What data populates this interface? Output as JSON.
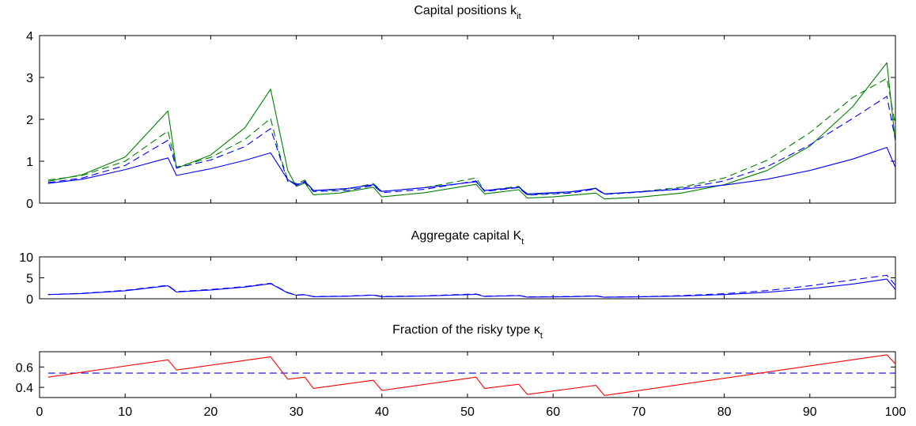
{
  "chart_data": [
    {
      "type": "line",
      "title": "Capital positions k",
      "title_sub": "it",
      "xlim": [
        0,
        100
      ],
      "ylim": [
        0,
        4
      ],
      "yticks": [
        "0",
        "1",
        "2",
        "3",
        "4"
      ],
      "show_xticklabels": false,
      "series": [
        {
          "color": "#008000",
          "style": "solid",
          "points": [
            [
              1,
              0.52
            ],
            [
              5,
              0.68
            ],
            [
              10,
              1.1
            ],
            [
              15,
              2.2
            ],
            [
              16,
              0.83
            ],
            [
              20,
              1.15
            ],
            [
              24,
              1.8
            ],
            [
              27,
              2.72
            ],
            [
              29,
              0.78
            ],
            [
              30,
              0.4
            ],
            [
              31,
              0.48
            ],
            [
              32,
              0.2
            ],
            [
              35,
              0.24
            ],
            [
              39,
              0.38
            ],
            [
              40,
              0.15
            ],
            [
              45,
              0.25
            ],
            [
              51,
              0.45
            ],
            [
              52,
              0.22
            ],
            [
              56,
              0.32
            ],
            [
              57,
              0.12
            ],
            [
              60,
              0.15
            ],
            [
              65,
              0.24
            ],
            [
              66,
              0.1
            ],
            [
              70,
              0.14
            ],
            [
              75,
              0.24
            ],
            [
              80,
              0.44
            ],
            [
              85,
              0.78
            ],
            [
              90,
              1.36
            ],
            [
              95,
              2.3
            ],
            [
              99,
              3.35
            ],
            [
              100,
              1.45
            ]
          ]
        },
        {
          "color": "#008000",
          "style": "dashed",
          "points": [
            [
              1,
              0.55
            ],
            [
              5,
              0.66
            ],
            [
              10,
              1.0
            ],
            [
              15,
              1.72
            ],
            [
              16,
              0.86
            ],
            [
              20,
              1.09
            ],
            [
              24,
              1.52
            ],
            [
              27,
              2.02
            ],
            [
              28,
              1.2
            ],
            [
              29,
              0.55
            ],
            [
              30,
              0.47
            ],
            [
              31,
              0.55
            ],
            [
              32,
              0.3
            ],
            [
              36,
              0.33
            ],
            [
              39,
              0.47
            ],
            [
              40,
              0.28
            ],
            [
              45,
              0.37
            ],
            [
              51,
              0.6
            ],
            [
              52,
              0.3
            ],
            [
              56,
              0.4
            ],
            [
              57,
              0.2
            ],
            [
              62,
              0.26
            ],
            [
              65,
              0.36
            ],
            [
              66,
              0.22
            ],
            [
              70,
              0.27
            ],
            [
              75,
              0.38
            ],
            [
              80,
              0.6
            ],
            [
              85,
              1.02
            ],
            [
              90,
              1.68
            ],
            [
              95,
              2.52
            ],
            [
              99,
              2.98
            ],
            [
              100,
              1.85
            ]
          ]
        },
        {
          "color": "#0000ff",
          "style": "dashed",
          "points": [
            [
              1,
              0.49
            ],
            [
              5,
              0.6
            ],
            [
              10,
              0.9
            ],
            [
              15,
              1.5
            ],
            [
              16,
              0.84
            ],
            [
              20,
              1.03
            ],
            [
              24,
              1.35
            ],
            [
              27,
              1.78
            ],
            [
              29,
              0.52
            ],
            [
              30,
              0.45
            ],
            [
              31,
              0.5
            ],
            [
              32,
              0.28
            ],
            [
              36,
              0.3
            ],
            [
              39,
              0.42
            ],
            [
              40,
              0.25
            ],
            [
              45,
              0.33
            ],
            [
              51,
              0.53
            ],
            [
              52,
              0.28
            ],
            [
              56,
              0.37
            ],
            [
              57,
              0.19
            ],
            [
              62,
              0.24
            ],
            [
              65,
              0.34
            ],
            [
              66,
              0.21
            ],
            [
              70,
              0.26
            ],
            [
              75,
              0.35
            ],
            [
              80,
              0.53
            ],
            [
              85,
              0.87
            ],
            [
              90,
              1.39
            ],
            [
              95,
              2.02
            ],
            [
              99,
              2.55
            ],
            [
              100,
              1.5
            ]
          ]
        },
        {
          "color": "#0000ff",
          "style": "solid",
          "points": [
            [
              1,
              0.47
            ],
            [
              5,
              0.57
            ],
            [
              10,
              0.8
            ],
            [
              15,
              1.08
            ],
            [
              16,
              0.66
            ],
            [
              20,
              0.82
            ],
            [
              24,
              1.02
            ],
            [
              27,
              1.2
            ],
            [
              29,
              0.56
            ],
            [
              30,
              0.42
            ],
            [
              31,
              0.52
            ],
            [
              32,
              0.3
            ],
            [
              36,
              0.35
            ],
            [
              39,
              0.44
            ],
            [
              40,
              0.28
            ],
            [
              45,
              0.37
            ],
            [
              51,
              0.51
            ],
            [
              52,
              0.3
            ],
            [
              56,
              0.38
            ],
            [
              57,
              0.22
            ],
            [
              62,
              0.27
            ],
            [
              65,
              0.35
            ],
            [
              66,
              0.22
            ],
            [
              70,
              0.27
            ],
            [
              75,
              0.33
            ],
            [
              80,
              0.43
            ],
            [
              85,
              0.57
            ],
            [
              90,
              0.78
            ],
            [
              95,
              1.05
            ],
            [
              99,
              1.33
            ],
            [
              100,
              0.85
            ]
          ]
        }
      ]
    },
    {
      "type": "line",
      "title": "Aggregate capital K",
      "title_sub": "t",
      "xlim": [
        0,
        100
      ],
      "ylim": [
        0,
        10
      ],
      "yticks": [
        "0",
        "5",
        "10"
      ],
      "show_xticklabels": false,
      "series": [
        {
          "color": "#0000ff",
          "style": "dashed",
          "points": [
            [
              1,
              1.0
            ],
            [
              5,
              1.3
            ],
            [
              10,
              2.0
            ],
            [
              15,
              3.2
            ],
            [
              16,
              1.7
            ],
            [
              20,
              2.2
            ],
            [
              24,
              2.9
            ],
            [
              27,
              3.7
            ],
            [
              29,
              1.5
            ],
            [
              30,
              0.9
            ],
            [
              31,
              1.0
            ],
            [
              32,
              0.55
            ],
            [
              36,
              0.65
            ],
            [
              39,
              0.9
            ],
            [
              40,
              0.55
            ],
            [
              45,
              0.7
            ],
            [
              51,
              1.15
            ],
            [
              52,
              0.6
            ],
            [
              56,
              0.8
            ],
            [
              57,
              0.45
            ],
            [
              62,
              0.55
            ],
            [
              65,
              0.7
            ],
            [
              66,
              0.4
            ],
            [
              70,
              0.5
            ],
            [
              75,
              0.75
            ],
            [
              80,
              1.2
            ],
            [
              85,
              1.95
            ],
            [
              90,
              3.1
            ],
            [
              95,
              4.5
            ],
            [
              99,
              5.6
            ],
            [
              100,
              3.2
            ]
          ]
        },
        {
          "color": "#0000ff",
          "style": "solid",
          "points": [
            [
              1,
              1.0
            ],
            [
              5,
              1.25
            ],
            [
              10,
              1.9
            ],
            [
              15,
              3.1
            ],
            [
              16,
              1.6
            ],
            [
              20,
              2.1
            ],
            [
              24,
              2.8
            ],
            [
              27,
              3.6
            ],
            [
              29,
              1.4
            ],
            [
              30,
              0.85
            ],
            [
              31,
              0.95
            ],
            [
              32,
              0.5
            ],
            [
              36,
              0.6
            ],
            [
              39,
              0.85
            ],
            [
              40,
              0.5
            ],
            [
              45,
              0.65
            ],
            [
              51,
              1.05
            ],
            [
              52,
              0.55
            ],
            [
              56,
              0.75
            ],
            [
              57,
              0.4
            ],
            [
              62,
              0.5
            ],
            [
              65,
              0.65
            ],
            [
              66,
              0.35
            ],
            [
              70,
              0.45
            ],
            [
              75,
              0.65
            ],
            [
              80,
              1.0
            ],
            [
              85,
              1.55
            ],
            [
              90,
              2.4
            ],
            [
              95,
              3.5
            ],
            [
              99,
              4.7
            ],
            [
              100,
              2.2
            ]
          ]
        }
      ]
    },
    {
      "type": "line",
      "title": "Fraction of the risky type κ",
      "title_sub": "t",
      "xlim": [
        0,
        100
      ],
      "ylim": [
        0.3,
        0.75
      ],
      "yticks": [
        "0.4",
        "0.6"
      ],
      "yticks_values": [
        0.4,
        0.6
      ],
      "xticks": [
        "0",
        "10",
        "20",
        "30",
        "40",
        "50",
        "60",
        "70",
        "80",
        "90",
        "100"
      ],
      "show_xticklabels": true,
      "series": [
        {
          "color": "#0000ff",
          "style": "dashed",
          "points": [
            [
              1,
              0.54
            ],
            [
              100,
              0.54
            ]
          ]
        },
        {
          "color": "#ff0000",
          "style": "solid",
          "points": [
            [
              1,
              0.5
            ],
            [
              15,
              0.67
            ],
            [
              16,
              0.57
            ],
            [
              27,
              0.7
            ],
            [
              29,
              0.48
            ],
            [
              31,
              0.5
            ],
            [
              32,
              0.39
            ],
            [
              39,
              0.47
            ],
            [
              40,
              0.37
            ],
            [
              51,
              0.5
            ],
            [
              52,
              0.39
            ],
            [
              56,
              0.43
            ],
            [
              57,
              0.33
            ],
            [
              65,
              0.42
            ],
            [
              66,
              0.32
            ],
            [
              99,
              0.72
            ],
            [
              100,
              0.63
            ]
          ]
        }
      ]
    }
  ]
}
